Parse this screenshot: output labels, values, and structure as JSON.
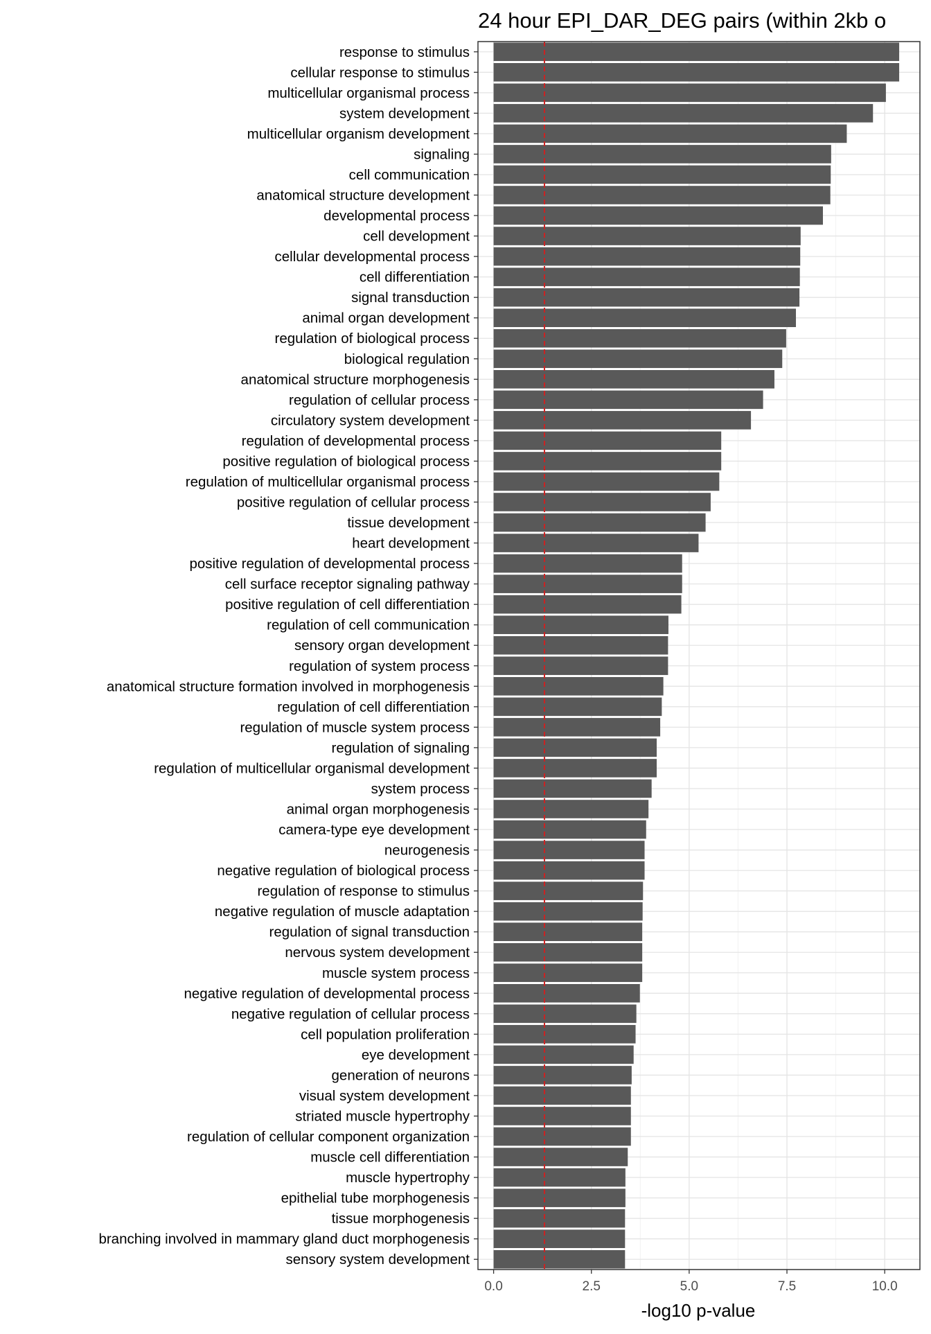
{
  "chart_data": {
    "type": "bar",
    "orientation": "horizontal",
    "title": "24 hour EPI_DAR_DEG pairs (within 2kb o",
    "xlabel": "-log10 p-value",
    "ylabel": "",
    "xlim": [
      -0.4,
      10.9
    ],
    "x_ticks": [
      0.0,
      2.5,
      5.0,
      7.5,
      10.0
    ],
    "x_tick_labels": [
      "0.0",
      "2.5",
      "5.0",
      "7.5",
      "10.0"
    ],
    "grid": true,
    "legend": "none",
    "reference_line": {
      "value": 1.3,
      "color": "#cc2222",
      "style": "dashed"
    },
    "bar_color": "#595959",
    "categories": [
      "response to stimulus",
      "cellular response to stimulus",
      "multicellular organismal process",
      "system development",
      "multicellular organism development",
      "signaling",
      "cell communication",
      "anatomical structure development",
      "developmental process",
      "cell development",
      "cellular developmental process",
      "cell differentiation",
      "signal transduction",
      "animal organ development",
      "regulation of biological process",
      "biological regulation",
      "anatomical structure morphogenesis",
      "regulation of cellular process",
      "circulatory system development",
      "regulation of developmental process",
      "positive regulation of biological process",
      "regulation of multicellular organismal process",
      "positive regulation of cellular process",
      "tissue development",
      "heart development",
      "positive regulation of developmental process",
      "cell surface receptor signaling pathway",
      "positive regulation of cell differentiation",
      "regulation of cell communication",
      "sensory organ development",
      "regulation of system process",
      "anatomical structure formation involved in morphogenesis",
      "regulation of cell differentiation",
      "regulation of muscle system process",
      "regulation of signaling",
      "regulation of multicellular organismal development",
      "system process",
      "animal organ morphogenesis",
      "camera-type eye development",
      "neurogenesis",
      "negative regulation of biological process",
      "regulation of response to stimulus",
      "negative regulation of muscle adaptation",
      "regulation of signal transduction",
      "nervous system development",
      "muscle system process",
      "negative regulation of developmental process",
      "negative regulation of cellular process",
      "cell population proliferation",
      "eye development",
      "generation of neurons",
      "visual system development",
      "striated muscle hypertrophy",
      "regulation of cellular component organization",
      "muscle cell differentiation",
      "muscle hypertrophy",
      "epithelial tube morphogenesis",
      "tissue morphogenesis",
      "branching involved in mammary gland duct morphogenesis",
      "sensory system development"
    ],
    "values": [
      10.37,
      10.37,
      10.03,
      9.7,
      9.03,
      8.63,
      8.62,
      8.61,
      8.42,
      7.85,
      7.84,
      7.83,
      7.82,
      7.73,
      7.48,
      7.38,
      7.18,
      6.89,
      6.58,
      5.82,
      5.82,
      5.77,
      5.55,
      5.42,
      5.24,
      4.82,
      4.82,
      4.8,
      4.47,
      4.46,
      4.46,
      4.34,
      4.3,
      4.26,
      4.17,
      4.17,
      4.04,
      3.96,
      3.9,
      3.86,
      3.86,
      3.82,
      3.81,
      3.8,
      3.8,
      3.8,
      3.74,
      3.65,
      3.63,
      3.58,
      3.53,
      3.51,
      3.51,
      3.51,
      3.43,
      3.37,
      3.37,
      3.36,
      3.36,
      3.36
    ]
  }
}
